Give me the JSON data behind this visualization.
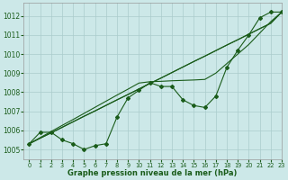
{
  "xlabel": "Graphe pression niveau de la mer (hPa)",
  "xlim": [
    -0.5,
    23
  ],
  "ylim": [
    1004.5,
    1012.7
  ],
  "yticks": [
    1005,
    1006,
    1007,
    1008,
    1009,
    1010,
    1011,
    1012
  ],
  "xticks": [
    0,
    1,
    2,
    3,
    4,
    5,
    6,
    7,
    8,
    9,
    10,
    11,
    12,
    13,
    14,
    15,
    16,
    17,
    18,
    19,
    20,
    21,
    22,
    23
  ],
  "bg_color": "#cce8e8",
  "grid_color": "#aacccc",
  "line_color": "#1a5c1a",
  "line_straight1": [
    1005.3,
    1005.59,
    1005.87,
    1006.16,
    1006.45,
    1006.74,
    1007.02,
    1007.31,
    1007.6,
    1007.88,
    1008.17,
    1008.46,
    1008.74,
    1009.03,
    1009.32,
    1009.61,
    1009.89,
    1010.18,
    1010.47,
    1010.75,
    1011.04,
    1011.33,
    1011.61,
    1012.2
  ],
  "line_straight2": [
    1005.3,
    1005.59,
    1005.87,
    1006.16,
    1006.45,
    1006.74,
    1007.02,
    1007.31,
    1007.6,
    1007.88,
    1008.17,
    1008.46,
    1008.74,
    1009.03,
    1009.32,
    1009.61,
    1009.89,
    1010.18,
    1010.47,
    1010.75,
    1011.04,
    1011.33,
    1011.61,
    1012.2
  ],
  "line_straight3": [
    1005.3,
    1005.62,
    1005.94,
    1006.26,
    1006.57,
    1006.89,
    1007.21,
    1007.53,
    1007.85,
    1008.16,
    1008.48,
    1008.55,
    1008.57,
    1008.6,
    1008.62,
    1008.64,
    1008.67,
    1009.0,
    1009.5,
    1010.0,
    1010.5,
    1011.1,
    1011.7,
    1012.2
  ],
  "line_wiggly": [
    1005.3,
    1005.9,
    1005.9,
    1005.5,
    1005.3,
    1005.0,
    1005.2,
    1005.3,
    1006.7,
    1007.7,
    1008.1,
    1008.5,
    1008.3,
    1008.3,
    1007.6,
    1007.3,
    1007.2,
    1007.8,
    1009.3,
    1010.2,
    1011.0,
    1011.9,
    1012.2,
    1012.2
  ]
}
